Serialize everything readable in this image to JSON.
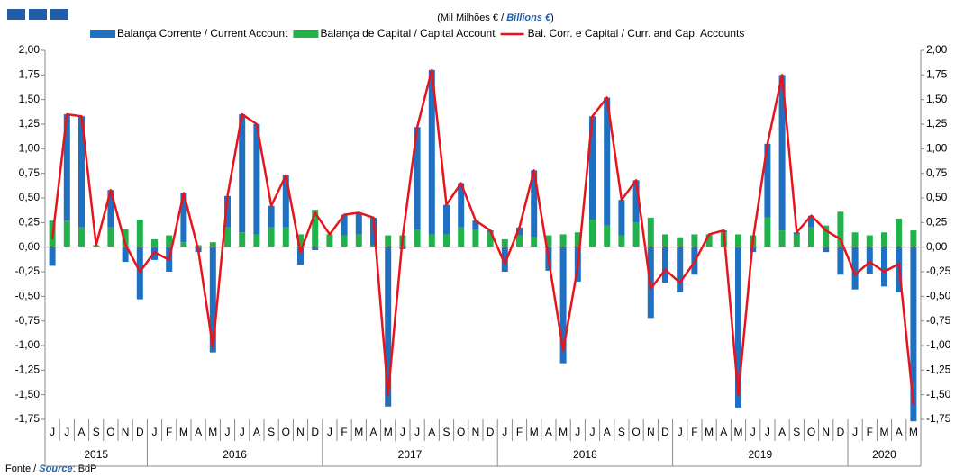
{
  "chart_data": {
    "type": "bar",
    "subtitle_parts": [
      "(Mil Milhões € / ",
      "Billions  €",
      ")"
    ],
    "source_parts": [
      "Fonte / ",
      "Source",
      ": BdP"
    ],
    "categories": [
      "J",
      "J",
      "A",
      "S",
      "O",
      "N",
      "D",
      "J",
      "F",
      "M",
      "A",
      "M",
      "J",
      "J",
      "A",
      "S",
      "O",
      "N",
      "D",
      "J",
      "F",
      "M",
      "A",
      "M",
      "J",
      "J",
      "A",
      "S",
      "O",
      "N",
      "D",
      "J",
      "F",
      "M",
      "A",
      "M",
      "J",
      "J",
      "A",
      "S",
      "O",
      "N",
      "D",
      "J",
      "F",
      "M",
      "A",
      "M",
      "J",
      "J",
      "A",
      "S",
      "O",
      "N",
      "D",
      "J",
      "F",
      "M",
      "A",
      "M"
    ],
    "year_labels": [
      "2015",
      null,
      null,
      null,
      null,
      null,
      null,
      "2016",
      null,
      null,
      null,
      null,
      null,
      null,
      null,
      null,
      null,
      null,
      null,
      "2017",
      null,
      null,
      null,
      null,
      null,
      null,
      null,
      null,
      null,
      null,
      null,
      "2018",
      null,
      null,
      null,
      null,
      null,
      null,
      null,
      null,
      null,
      null,
      null,
      "2019",
      null,
      null,
      null,
      null,
      null,
      null,
      null,
      null,
      null,
      null,
      null,
      "2020",
      null,
      null,
      null,
      null
    ],
    "series": [
      {
        "name": "Balança Corrente / Current Account",
        "color": "#1f70c1",
        "values": [
          -0.19,
          1.08,
          1.13,
          0.0,
          0.38,
          -0.15,
          -0.53,
          -0.13,
          -0.25,
          0.5,
          -0.05,
          -1.07,
          0.32,
          1.2,
          1.12,
          0.22,
          0.53,
          -0.18,
          -0.03,
          0.0,
          0.21,
          0.22,
          0.28,
          -1.62,
          -0.02,
          1.04,
          1.67,
          0.3,
          0.45,
          0.09,
          0.02,
          -0.25,
          0.08,
          0.68,
          -0.24,
          -1.18,
          -0.35,
          1.05,
          1.3,
          0.36,
          0.43,
          -0.72,
          -0.36,
          -0.46,
          -0.28,
          0.0,
          0.02,
          -1.63,
          -0.05,
          0.75,
          1.58,
          0.02,
          0.12,
          -0.05,
          -0.28,
          -0.43,
          -0.27,
          -0.4,
          -0.46,
          -1.77
        ]
      },
      {
        "name": "Balança de Capital / Capital Account",
        "color": "#22b24c",
        "values": [
          0.27,
          0.27,
          0.2,
          0.02,
          0.2,
          0.18,
          0.28,
          0.08,
          0.12,
          0.05,
          0.02,
          0.05,
          0.2,
          0.15,
          0.13,
          0.2,
          0.2,
          0.13,
          0.38,
          0.13,
          0.12,
          0.13,
          0.02,
          0.12,
          0.12,
          0.18,
          0.13,
          0.13,
          0.2,
          0.18,
          0.15,
          0.08,
          0.12,
          0.1,
          0.12,
          0.13,
          0.15,
          0.28,
          0.22,
          0.12,
          0.25,
          0.3,
          0.13,
          0.1,
          0.13,
          0.13,
          0.15,
          0.13,
          0.12,
          0.3,
          0.17,
          0.13,
          0.2,
          0.22,
          0.36,
          0.15,
          0.12,
          0.15,
          0.29,
          0.17
        ]
      },
      {
        "name": "Bal. Corr. e Capital / Curr. and Cap. Accounts",
        "color": "#e8141b",
        "values": [
          0.08,
          1.35,
          1.33,
          0.02,
          0.58,
          0.03,
          -0.25,
          -0.05,
          -0.13,
          0.55,
          -0.03,
          -1.02,
          0.52,
          1.35,
          1.25,
          0.42,
          0.73,
          -0.05,
          0.35,
          0.13,
          0.33,
          0.35,
          0.3,
          -1.5,
          0.1,
          1.22,
          1.8,
          0.43,
          0.65,
          0.27,
          0.17,
          -0.17,
          0.2,
          0.78,
          -0.12,
          -1.05,
          -0.2,
          1.33,
          1.52,
          0.48,
          0.68,
          -0.42,
          -0.23,
          -0.36,
          -0.15,
          0.13,
          0.17,
          -1.5,
          0.07,
          1.05,
          1.75,
          0.15,
          0.32,
          0.17,
          0.08,
          -0.28,
          -0.15,
          -0.25,
          -0.17,
          -1.6
        ]
      }
    ],
    "ylim": [
      -1.75,
      2.0
    ],
    "yticks": [
      {
        "value": -1.75,
        "label": "-1,75"
      },
      {
        "value": -1.5,
        "label": "-1,50"
      },
      {
        "value": -1.25,
        "label": "-1,25"
      },
      {
        "value": -1.0,
        "label": "-1,00"
      },
      {
        "value": -0.75,
        "label": "-0,75"
      },
      {
        "value": -0.5,
        "label": "-0,50"
      },
      {
        "value": -0.25,
        "label": "-0,25"
      },
      {
        "value": 0,
        "label": "0,00"
      },
      {
        "value": 0.25,
        "label": "0,25"
      },
      {
        "value": 0.5,
        "label": "0,50"
      },
      {
        "value": 0.75,
        "label": "0,75"
      },
      {
        "value": 1.0,
        "label": "1,00"
      },
      {
        "value": 1.25,
        "label": "1,25"
      },
      {
        "value": 1.5,
        "label": "1,50"
      },
      {
        "value": 1.75,
        "label": "1,75"
      },
      {
        "value": 2.0,
        "label": "2,00"
      }
    ]
  }
}
